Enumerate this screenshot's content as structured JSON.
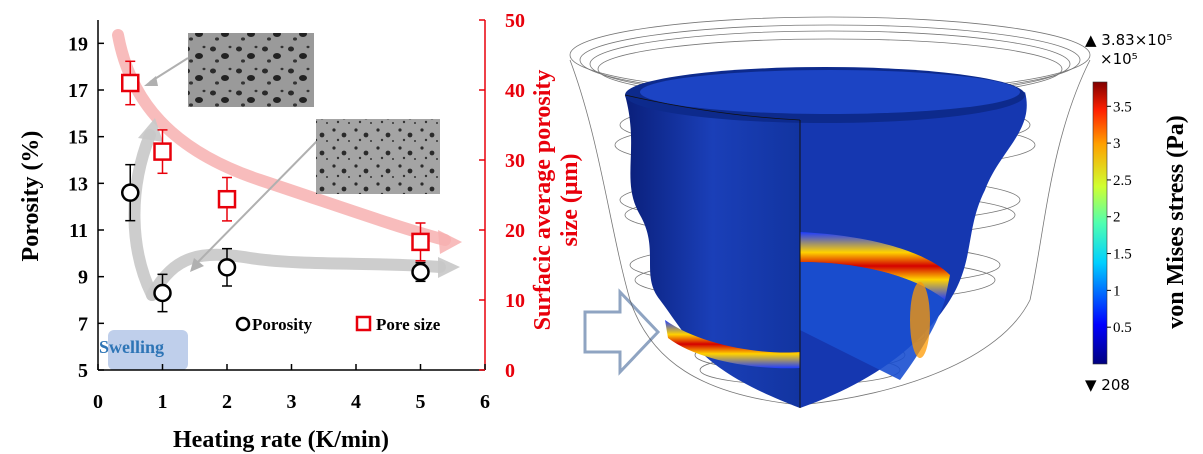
{
  "chart_data": [
    {
      "type": "scatter",
      "xlabel": "Heating rate (K/min)",
      "ylabel_left": "Porosity (%)",
      "ylabel_right": [
        "Surfacic average porosity",
        "size (μm)"
      ],
      "xlim": [
        0,
        6
      ],
      "ylim_left": [
        5,
        20
      ],
      "ylim_right": [
        0,
        50
      ],
      "x_ticks": [
        "0",
        "1",
        "2",
        "3",
        "4",
        "5",
        "6"
      ],
      "y_ticks_left": [
        "5",
        "7",
        "9",
        "11",
        "13",
        "15",
        "17",
        "19"
      ],
      "y_ticks_right": [
        "0",
        "10",
        "20",
        "30",
        "40",
        "50"
      ],
      "grid": false,
      "legend_position": "bottom-right",
      "series": [
        {
          "name": "Porosity",
          "axis": "left",
          "marker": "circle",
          "color": "#000000",
          "x": [
            0.5,
            1,
            2,
            5
          ],
          "y": [
            12.6,
            8.3,
            9.4,
            9.2
          ],
          "err": [
            1.2,
            0.8,
            0.8,
            0.4
          ]
        },
        {
          "name": "Pore size",
          "axis": "right",
          "marker": "square",
          "color": "#e8000b",
          "x": [
            0.5,
            1,
            2,
            5
          ],
          "y": [
            41,
            31.2,
            24.4,
            18.3
          ],
          "err": [
            3.1,
            3.1,
            3.1,
            2.7
          ]
        }
      ],
      "annotations": {
        "swelling_label": "Swelling"
      }
    },
    {
      "type": "heatmap",
      "colorbar": {
        "label": "von Mises stress (Pa)",
        "max_label": "▲ 3.83×10⁵",
        "multiplier": "×10⁵",
        "min_label": "▼ 208",
        "ticks": [
          "3.5",
          "3",
          "2.5",
          "2",
          "1.5",
          "1",
          "0.5"
        ]
      }
    }
  ],
  "colors": {
    "porosity": "#000000",
    "pore_size": "#e8000b",
    "right_axis": "#e8000b",
    "trend_gray": "#c8c8c8",
    "trend_pink": "#f7b0b0",
    "swelling_box": "#b4c7e7",
    "swelling_text": "#2e75b6",
    "arrow_outline": "#8fa4c2"
  }
}
